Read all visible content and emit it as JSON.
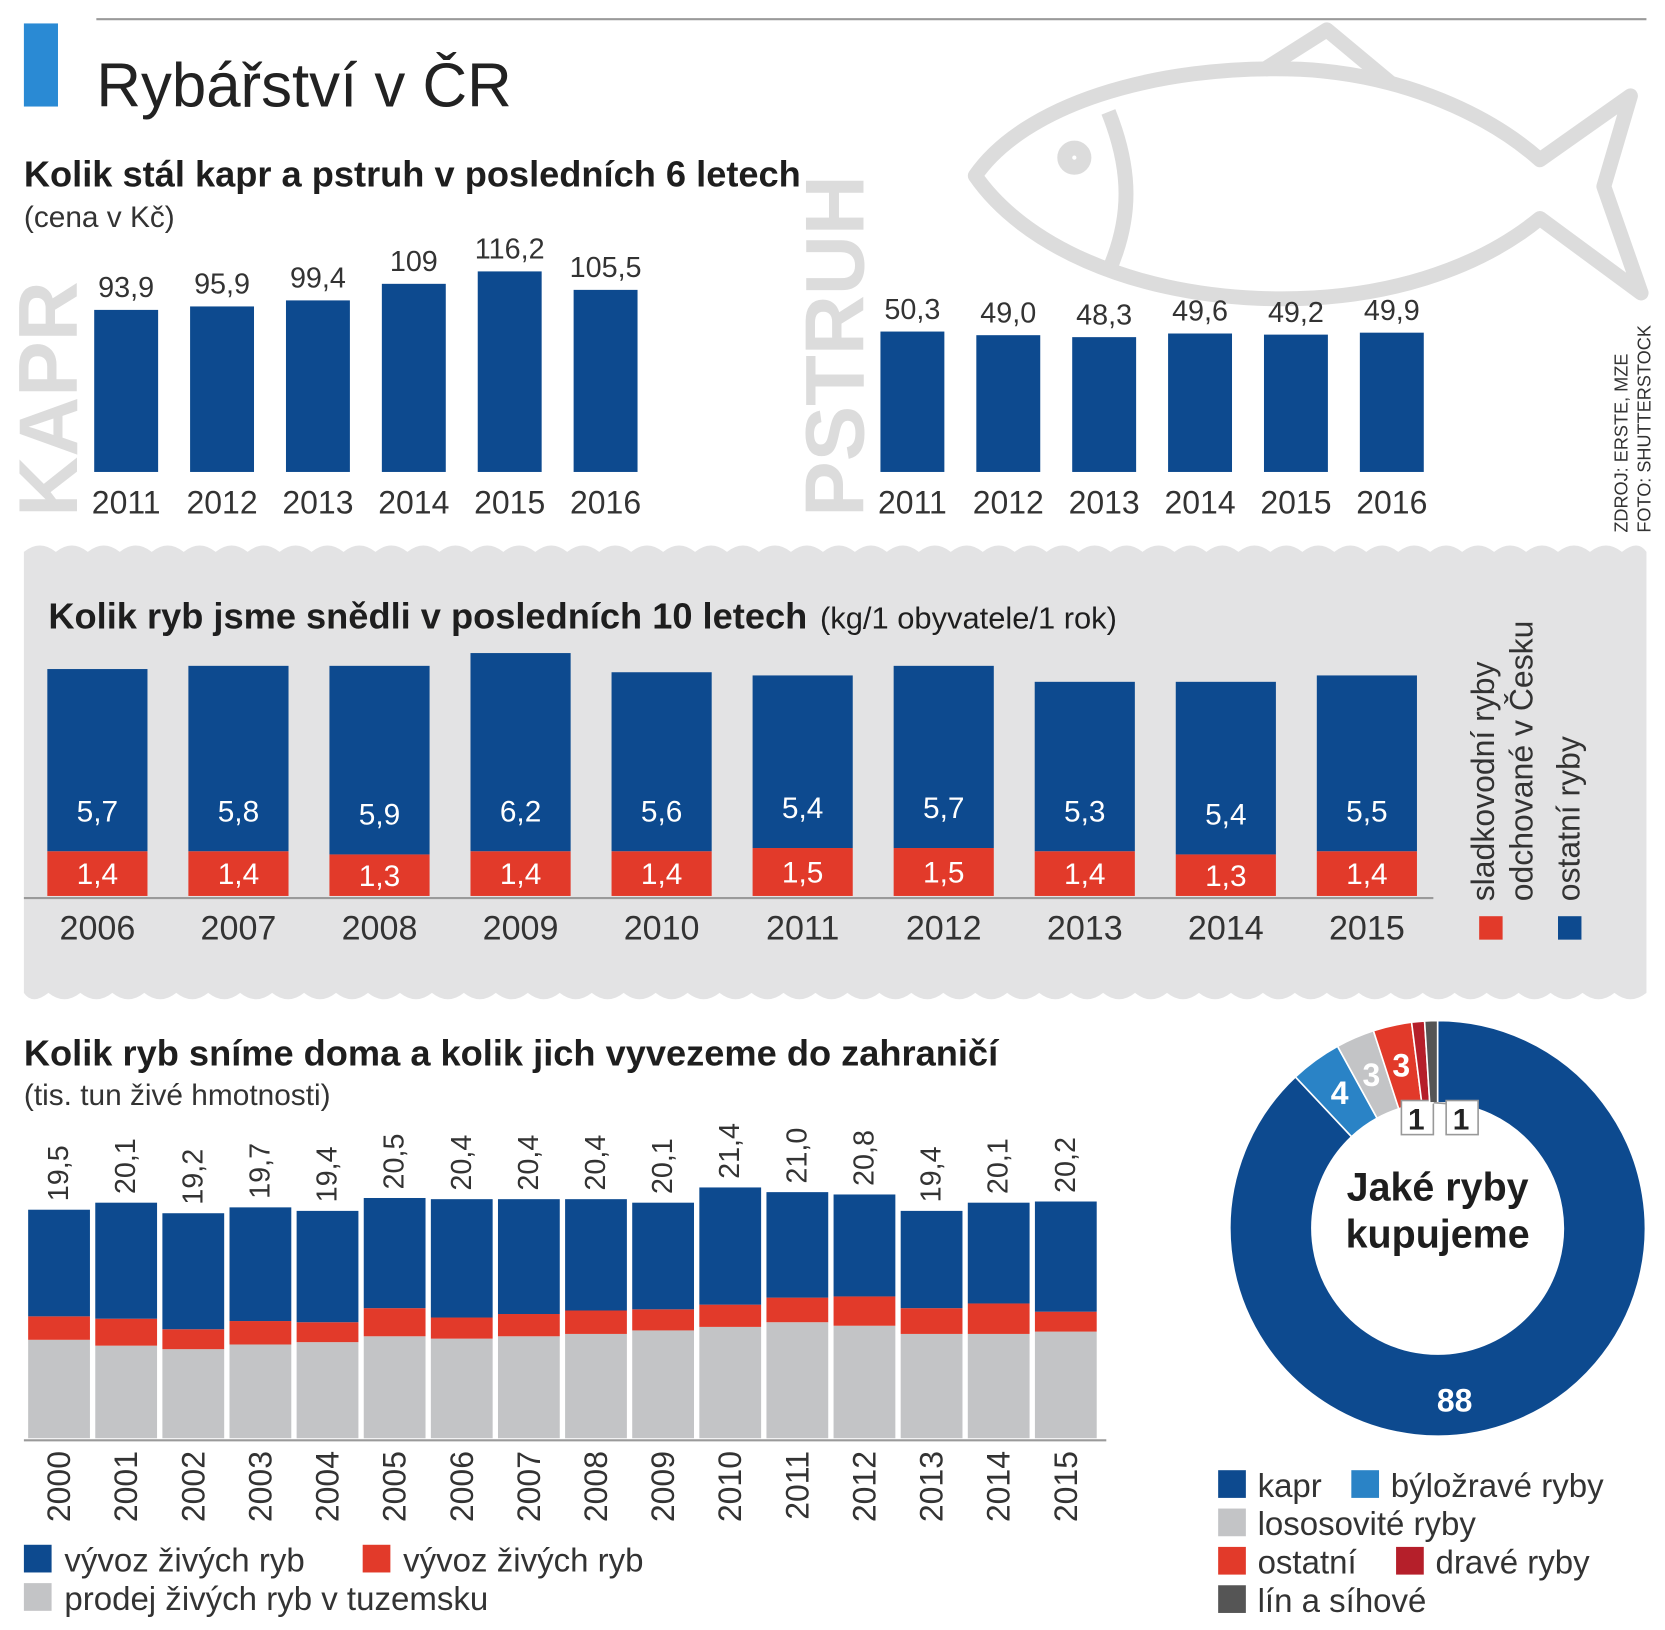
{
  "header": {
    "title": "Rybářství v ČR"
  },
  "source": {
    "lines": [
      "ZDROJ: ERSTE, MZE",
      "FOTO: SHUTTERSTOCK"
    ]
  },
  "chart_data": [
    {
      "type": "bar",
      "title": "Kolik stál kapr a pstruh v posledních 6 letech",
      "subtitle": "(cena v Kč)",
      "label": "KAPR",
      "categories": [
        "2011",
        "2012",
        "2013",
        "2014",
        "2015",
        "2016"
      ],
      "values": [
        93.9,
        95.9,
        99.4,
        109,
        116.2,
        105.5
      ],
      "value_labels": [
        "93,9",
        "95,9",
        "99,4",
        "109",
        "116,2",
        "105,5"
      ],
      "color": "#0d4a8f"
    },
    {
      "type": "bar",
      "label": "PSTRUH",
      "categories": [
        "2011",
        "2012",
        "2013",
        "2014",
        "2015",
        "2016"
      ],
      "values": [
        50.3,
        49.0,
        48.3,
        49.6,
        49.2,
        49.9
      ],
      "value_labels": [
        "50,3",
        "49,0",
        "48,3",
        "49,6",
        "49,2",
        "49,9"
      ],
      "color": "#0d4a8f"
    },
    {
      "type": "stacked",
      "title": "Kolik ryb jsme snědli v posledních 10 letech",
      "subtitle": "(kg/1 obyvatele/1 rok)",
      "categories": [
        "2006",
        "2007",
        "2008",
        "2009",
        "2010",
        "2011",
        "2012",
        "2013",
        "2014",
        "2015"
      ],
      "series": [
        {
          "name": "sladkovodní ryby odchované v Česku",
          "color": "#e23a2a",
          "values": [
            1.4,
            1.4,
            1.3,
            1.4,
            1.4,
            1.5,
            1.5,
            1.4,
            1.3,
            1.4
          ],
          "value_labels": [
            "1,4",
            "1,4",
            "1,3",
            "1,4",
            "1,4",
            "1,5",
            "1,5",
            "1,4",
            "1,3",
            "1,4"
          ]
        },
        {
          "name": "ostatní ryby",
          "color": "#0d4a8f",
          "values": [
            5.7,
            5.8,
            5.9,
            6.2,
            5.6,
            5.4,
            5.7,
            5.3,
            5.4,
            5.5
          ],
          "value_labels": [
            "5,7",
            "5,8",
            "5,9",
            "6,2",
            "5,6",
            "5,4",
            "5,7",
            "5,3",
            "5,4",
            "5,5"
          ]
        }
      ]
    },
    {
      "type": "stacked",
      "title": "Kolik ryb sníme doma a kolik jich vyvezeme do zahraničí",
      "subtitle": "(tis. tun živé hmotnosti)",
      "categories": [
        "2000",
        "2001",
        "2002",
        "2003",
        "2004",
        "2005",
        "2006",
        "2007",
        "2008",
        "2009",
        "2010",
        "2011",
        "2012",
        "2013",
        "2014",
        "2015"
      ],
      "series": [
        {
          "name": "prodej živých ryb v tuzemsku",
          "color": "#c3c4c6",
          "values": [
            8.4,
            7.9,
            7.6,
            8.0,
            8.2,
            8.7,
            8.5,
            8.7,
            8.9,
            9.2,
            9.5,
            9.9,
            9.6,
            8.9,
            8.9,
            9.1
          ]
        },
        {
          "name": "vývoz živých ryb",
          "color": "#e23a2a",
          "values": [
            2.0,
            2.3,
            1.7,
            2.0,
            1.7,
            2.4,
            1.8,
            1.9,
            2.0,
            1.8,
            1.9,
            2.1,
            2.5,
            2.2,
            2.6,
            1.7
          ]
        },
        {
          "name": "vývoz živých ryb",
          "color": "#0d4a8f",
          "values": [
            9.1,
            9.9,
            9.9,
            9.7,
            9.5,
            9.4,
            10.1,
            9.8,
            9.5,
            9.1,
            10.0,
            9.0,
            8.7,
            8.3,
            8.6,
            9.4
          ]
        }
      ],
      "totals": [
        19.5,
        20.1,
        19.2,
        19.7,
        19.4,
        20.5,
        20.4,
        20.4,
        20.4,
        20.1,
        21.4,
        21.0,
        20.8,
        19.4,
        20.1,
        20.2
      ],
      "total_labels": [
        "19,5",
        "20,1",
        "19,2",
        "19,7",
        "19,4",
        "20,5",
        "20,4",
        "20,4",
        "20,4",
        "20,1",
        "21,4",
        "21,0",
        "20,8",
        "19,4",
        "20,1",
        "20,2"
      ]
    },
    {
      "type": "donut",
      "title": "Jaké ryby kupujeme",
      "categories": [
        "kapr",
        "býložravé ryby",
        "lososovité ryby",
        "ostatní",
        "dravé ryby",
        "lín a síhové"
      ],
      "values": [
        88,
        4,
        3,
        3,
        1,
        1
      ],
      "colors": [
        "#0d4a8f",
        "#2a83c6",
        "#c3c4c6",
        "#e23a2a",
        "#b51f2a",
        "#555555"
      ]
    }
  ]
}
